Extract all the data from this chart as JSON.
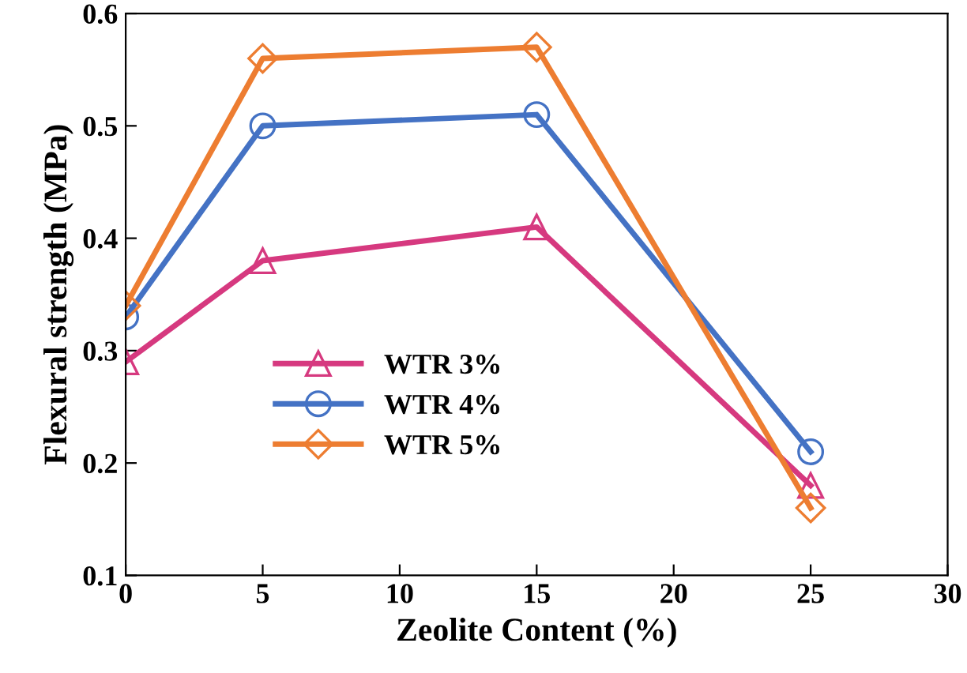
{
  "chart_data": {
    "type": "line",
    "xlabel": "Zeolite Content (%)",
    "ylabel": "Flexural strength (MPa)",
    "xlim": [
      0,
      30
    ],
    "xticks": [
      0,
      5,
      10,
      15,
      20,
      25,
      30
    ],
    "ylim": [
      0.1,
      0.6
    ],
    "yticks": [
      {
        "value": 0.1,
        "label": "0.1"
      },
      {
        "value": 0.2,
        "label": "0.2"
      },
      {
        "value": 0.3,
        "label": "0.3"
      },
      {
        "value": 0.4,
        "label": "0.4"
      },
      {
        "value": 0.5,
        "label": "0.5"
      },
      {
        "value": 0.6,
        "label": "0.6"
      }
    ],
    "x": [
      0,
      5,
      15,
      25
    ],
    "legend": "left",
    "grid": false,
    "line_style": "solid",
    "series": [
      {
        "name": "WTR 3%",
        "color": "#d6397f",
        "marker": "triangle",
        "values": [
          0.29,
          0.38,
          0.41,
          0.18
        ]
      },
      {
        "name": "WTR 4%",
        "color": "#4472c4",
        "marker": "circle",
        "values": [
          0.33,
          0.5,
          0.51,
          0.21
        ]
      },
      {
        "name": "WTR 5%",
        "color": "#ed7d31",
        "marker": "diamond",
        "values": [
          0.34,
          0.56,
          0.57,
          0.16
        ]
      }
    ]
  }
}
